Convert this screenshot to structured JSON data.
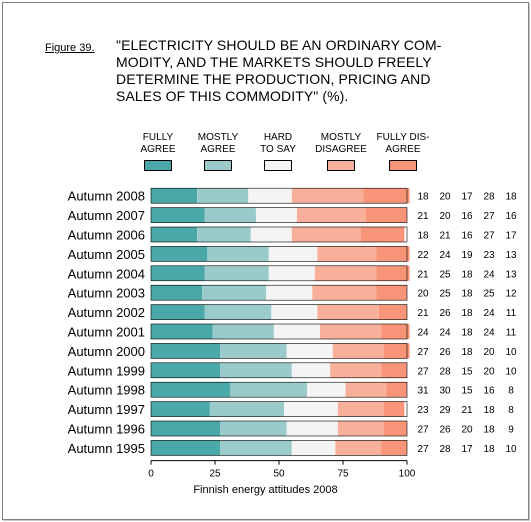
{
  "figure_label": "Figure 39.",
  "title": "\"ELECTRICITY SHOULD BE AN ORDINARY COM-\nMODITY, AND THE MARKETS SHOULD FREELY\nDETERMINE THE PRODUCTION, PRICING AND\nSALES OF THIS COMMODITY\" (%).",
  "footer": "Finnish energy attitudes 2008",
  "legend": [
    {
      "label": "FULLY\nAGREE",
      "color": "#4AA8A8"
    },
    {
      "label": "MOSTLY\nAGREE",
      "color": "#9ACACA"
    },
    {
      "label": "HARD\nTO SAY",
      "color": "#F4F4F4"
    },
    {
      "label": "MOSTLY\nDISAGREE",
      "color": "#F8B09A"
    },
    {
      "label": "FULLY DIS-\nAGREE",
      "color": "#F89478"
    }
  ],
  "chart_data": {
    "type": "bar",
    "orientation": "horizontal",
    "stacked": true,
    "xlim": [
      0,
      100
    ],
    "xticks": [
      "0",
      "25",
      "50",
      "75",
      "100"
    ],
    "categories": [
      "Autumn 2008",
      "Autumn 2007",
      "Autumn 2006",
      "Autumn 2005",
      "Autumn 2004",
      "Autumn 2003",
      "Autumn 2002",
      "Autumn 2001",
      "Autumn 2000",
      "Autumn 1999",
      "Autumn 1998",
      "Autumn 1997",
      "Autumn 1996",
      "Autumn 1995"
    ],
    "series": [
      {
        "name": "FULLY AGREE",
        "color": "#4AA8A8",
        "values": [
          18,
          21,
          18,
          22,
          21,
          20,
          21,
          24,
          27,
          27,
          31,
          23,
          27,
          27
        ]
      },
      {
        "name": "MOSTLY AGREE",
        "color": "#9ACACA",
        "values": [
          20,
          20,
          21,
          24,
          25,
          25,
          26,
          24,
          26,
          28,
          30,
          29,
          26,
          28
        ]
      },
      {
        "name": "HARD TO SAY",
        "color": "#F4F4F4",
        "values": [
          17,
          16,
          16,
          19,
          18,
          18,
          18,
          18,
          18,
          15,
          15,
          21,
          20,
          17
        ]
      },
      {
        "name": "MOSTLY DISAGREE",
        "color": "#F8B09A",
        "values": [
          28,
          27,
          27,
          23,
          24,
          25,
          24,
          24,
          20,
          20,
          16,
          18,
          18,
          18
        ]
      },
      {
        "name": "FULLY DISAGREE",
        "color": "#F89478",
        "values": [
          18,
          16,
          17,
          13,
          13,
          12,
          11,
          11,
          10,
          10,
          8,
          8,
          9,
          10
        ]
      }
    ]
  }
}
